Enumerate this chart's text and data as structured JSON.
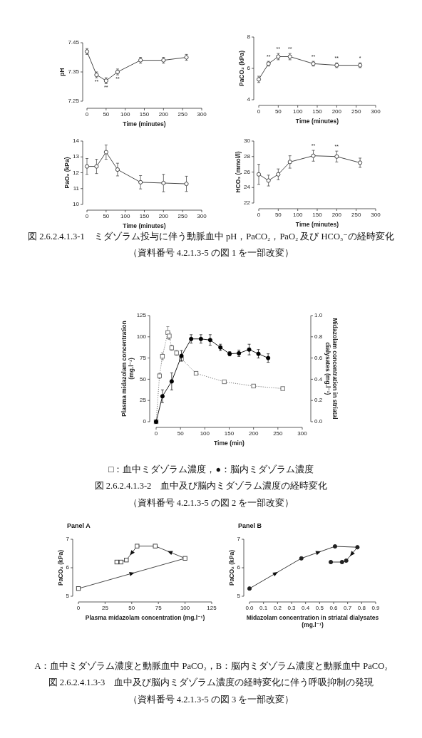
{
  "chart_data": [
    {
      "type": "line",
      "x": [
        0,
        25,
        50,
        80,
        140,
        200,
        260
      ],
      "xlim": [
        0,
        300
      ],
      "xticks": [
        0,
        50,
        100,
        150,
        200,
        250,
        300
      ],
      "ylim": [
        7.25,
        7.45
      ],
      "yticks": [
        7.25,
        7.35,
        7.45
      ],
      "xlabel": "Time (minutes)",
      "ylabel": "pH",
      "series": [
        {
          "color": "#333333",
          "marker": "circle",
          "values": [
            7.42,
            7.34,
            7.32,
            7.35,
            7.39,
            7.39,
            7.4
          ],
          "errors": [
            0.01,
            0.01,
            0.01,
            0.01,
            0.01,
            0.01,
            0.01
          ]
        }
      ],
      "annotations": [
        {
          "text": "**",
          "x": 25,
          "y": 7.34
        },
        {
          "text": "**",
          "x": 50,
          "y": 7.32
        },
        {
          "text": "**",
          "x": 80,
          "y": 7.35
        }
      ]
    },
    {
      "type": "line",
      "x": [
        0,
        25,
        50,
        80,
        140,
        200,
        260
      ],
      "xlim": [
        0,
        300
      ],
      "xticks": [
        0,
        50,
        100,
        150,
        200,
        250,
        300
      ],
      "ylim": [
        4,
        8
      ],
      "yticks": [
        4,
        6,
        8
      ],
      "xlabel": "Time (minutes)",
      "ylabel": "PaCO₂ (kPa)",
      "series": [
        {
          "color": "#333333",
          "marker": "circle",
          "values": [
            5.3,
            6.3,
            6.75,
            6.75,
            6.3,
            6.2,
            6.2
          ],
          "errors": [
            0.2,
            0.15,
            0.2,
            0.2,
            0.15,
            0.15,
            0.15
          ]
        }
      ],
      "annotations": [
        {
          "text": "**",
          "x": 25,
          "y": 6.3
        },
        {
          "text": "**",
          "x": 50,
          "y": 6.75
        },
        {
          "text": "**",
          "x": 80,
          "y": 6.75
        },
        {
          "text": "**",
          "x": 140,
          "y": 6.3
        },
        {
          "text": "**",
          "x": 200,
          "y": 6.2
        },
        {
          "text": "*",
          "x": 260,
          "y": 6.2
        }
      ]
    },
    {
      "type": "line",
      "x": [
        0,
        25,
        50,
        80,
        140,
        200,
        260
      ],
      "xlim": [
        0,
        300
      ],
      "xticks": [
        0,
        50,
        100,
        150,
        200,
        250,
        300
      ],
      "ylim": [
        10,
        14
      ],
      "yticks": [
        10,
        11,
        12,
        13,
        14
      ],
      "xlabel": "Time (minutes)",
      "ylabel": "PaO₂ (kPa)",
      "series": [
        {
          "color": "#333333",
          "marker": "circle",
          "values": [
            12.4,
            12.4,
            13.3,
            12.2,
            11.4,
            11.35,
            11.3
          ],
          "errors": [
            0.5,
            0.45,
            0.45,
            0.4,
            0.42,
            0.55,
            0.48
          ]
        }
      ]
    },
    {
      "type": "line",
      "x": [
        0,
        25,
        50,
        80,
        140,
        200,
        260
      ],
      "xlim": [
        0,
        300
      ],
      "xticks": [
        0,
        50,
        100,
        150,
        200,
        250,
        300
      ],
      "ylim": [
        22,
        30
      ],
      "yticks": [
        22,
        24,
        26,
        28,
        30
      ],
      "xlabel": "Time (minutes)",
      "ylabel": "HCO₃ (mmol/l)",
      "series": [
        {
          "color": "#333333",
          "marker": "circle",
          "values": [
            25.7,
            24.9,
            25.7,
            27.3,
            28.1,
            28.0,
            27.2
          ],
          "errors": [
            1.3,
            0.7,
            0.7,
            0.8,
            0.7,
            0.7,
            0.6
          ]
        }
      ],
      "annotations": [
        {
          "text": "**",
          "x": 140,
          "y": 28.1
        },
        {
          "text": "**",
          "x": 200,
          "y": 28.0
        },
        "図 2.6.2.4.1.3-1　ミダゾラム投与に伴う動脈血中 pH，PaCO₂，PaO₂ 及び HCO₃⁻の経時変化",
        "（資料番号 4.2.1.3-5 の図 1 を一部改変）"
      ]
    },
    {
      "type": "line",
      "xlim": [
        0,
        300
      ],
      "xticks": [
        0,
        50,
        100,
        150,
        200,
        250,
        300
      ],
      "ylim": [
        0,
        125
      ],
      "yticks": [
        0,
        25,
        50,
        75,
        100,
        125
      ],
      "y2lim": [
        0,
        1
      ],
      "y2ticks": [
        {
          "value": 0,
          "label": "0.0"
        },
        {
          "value": 0.2,
          "label": "0.2"
        },
        {
          "value": 0.4,
          "label": "0.4"
        },
        {
          "value": 0.6,
          "label": "0.6"
        },
        {
          "value": 0.8,
          "label": "0.8"
        },
        {
          "value": 1,
          "label": "1.0"
        }
      ],
      "xlabel": "Time (min)",
      "ylabel": "Plasma midazolam concentration (mg.l⁻¹)",
      "y2label": "Midazolam concentration in striatal dialysates (mg.l⁻¹)",
      "series": [
        {
          "color": "#666666",
          "marker": "square",
          "line_style": "dotted",
          "x": [
            0,
            7,
            13,
            24,
            27,
            32,
            42,
            52,
            82,
            140,
            200,
            260
          ],
          "values": [
            0,
            54,
            77,
            105,
            101,
            87,
            81,
            74,
            57,
            47,
            42,
            39
          ],
          "errors": [
            null,
            3,
            4,
            7,
            4,
            3,
            3,
            null,
            1,
            1,
            1,
            1
          ]
        },
        {
          "color": "#000000",
          "marker": "circle",
          "line_style": "solid",
          "axis": "y2",
          "x": [
            0,
            13,
            32,
            52,
            72,
            92,
            111,
            132,
            151,
            170,
            191,
            210,
            230
          ],
          "values": [
            0,
            0.24,
            0.38,
            0.62,
            0.78,
            0.78,
            0.77,
            0.7,
            0.64,
            0.645,
            0.68,
            0.64,
            0.6
          ],
          "errors": [
            null,
            0.06,
            0.08,
            0.05,
            0.04,
            0.04,
            0.05,
            0.03,
            0.02,
            0.03,
            0.05,
            0.04,
            0.04
          ]
        }
      ],
      "annotations": [
        "□：血中ミダゾラム濃度，●：脳内ミダゾラム濃度",
        "図 2.6.2.4.1.3-2　血中及び脳内ミダゾラム濃度の経時変化",
        "（資料番号 4.2.1.3-5 の図 2 を一部改変）"
      ]
    },
    {
      "type": "line",
      "title": "Panel A",
      "xlim": [
        0,
        125
      ],
      "xticks": [
        0,
        25,
        50,
        75,
        100,
        125
      ],
      "ylim": [
        5,
        7
      ],
      "yticks": [
        5,
        6,
        7
      ],
      "xlabel": "Plasma midazolam concentration (mg.l⁻¹)",
      "ylabel": "PaCO₂ (kPa)",
      "series": [
        {
          "color": "#333333",
          "marker": "square",
          "line_style": "solid",
          "x": [
            0,
            100,
            72,
            55,
            45,
            40,
            36
          ],
          "values": [
            5.27,
            6.33,
            6.76,
            6.76,
            6.27,
            6.2,
            6.2
          ]
        }
      ]
    },
    {
      "type": "line",
      "title": "Panel B",
      "xlim": [
        0,
        0.9
      ],
      "xticks": [
        {
          "value": 0,
          "label": "0.0"
        },
        {
          "value": 0.1,
          "label": "0.1"
        },
        {
          "value": 0.2,
          "label": "0.2"
        },
        {
          "value": 0.3,
          "label": "0.3"
        },
        {
          "value": 0.4,
          "label": "0.4"
        },
        {
          "value": 0.5,
          "label": "0.5"
        },
        {
          "value": 0.6,
          "label": "0.6"
        },
        {
          "value": 0.7,
          "label": "0.7"
        },
        {
          "value": 0.8,
          "label": "0.8"
        },
        {
          "value": 0.9,
          "label": "0.9"
        }
      ],
      "ylim": [
        5,
        7
      ],
      "yticks": [
        5,
        6,
        7
      ],
      "xlabel": "Midazolam concentration in striatal dialysates (mg.l⁻¹)",
      "ylabel": "PaCO₂ (kPa)",
      "series": [
        {
          "color": "#222222",
          "marker": "circle",
          "line_style": "solid",
          "x": [
            0,
            0.37,
            0.61,
            0.77,
            0.69,
            0.66,
            0.58
          ],
          "values": [
            5.27,
            6.33,
            6.75,
            6.72,
            6.25,
            6.2,
            6.2
          ]
        }
      ],
      "annotations": [
        "A：血中ミダゾラム濃度と動脈血中 PaCO₂，B：脳内ミダゾラム濃度と動脈血中 PaCO₂",
        "図 2.6.2.4.1.3-3　血中及び脳内ミダゾラム濃度の経時変化に伴う呼吸抑制の発現",
        "（資料番号 4.2.1.3-5 の図 3 を一部改変）"
      ]
    }
  ]
}
